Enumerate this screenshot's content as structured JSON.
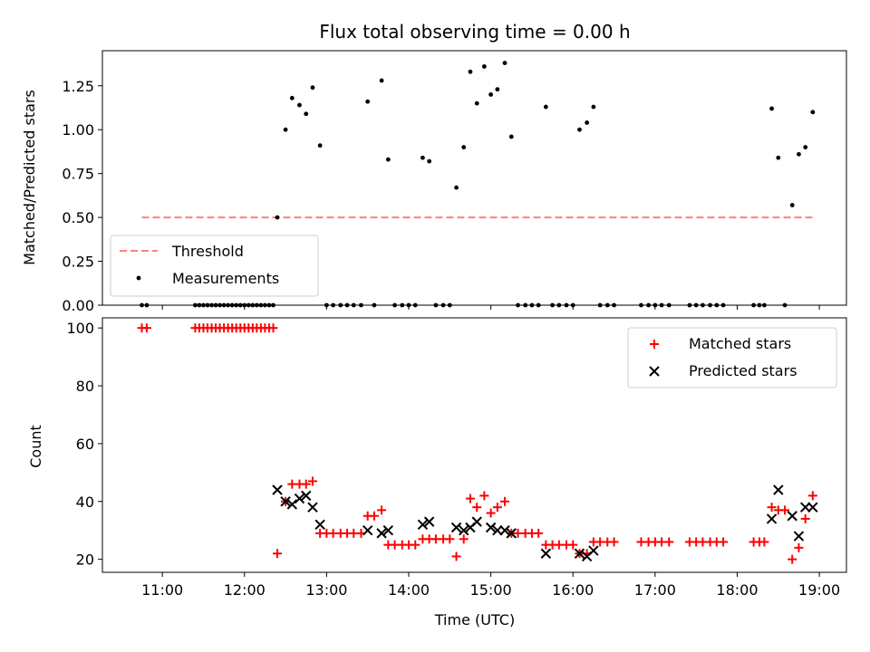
{
  "chart_data": [
    {
      "type": "scatter",
      "title": "Flux total observing time = 0.00 h",
      "xlabel": "",
      "ylabel": "Matched/Predicted stars",
      "xlim": [
        10.27,
        19.33
      ],
      "ylim": [
        0,
        1.45
      ],
      "yticks": [
        "0.00",
        "0.25",
        "0.50",
        "0.75",
        "1.00",
        "1.25"
      ],
      "threshold": {
        "name": "Threshold",
        "value": 0.5,
        "x": [
          10.75,
          18.93
        ],
        "color": "#ff7f7f"
      },
      "series": [
        {
          "name": "Measurements",
          "color": "#000000",
          "x": [
            10.75,
            10.81,
            11.4,
            11.45,
            11.5,
            11.55,
            11.6,
            11.65,
            11.7,
            11.75,
            11.8,
            11.85,
            11.9,
            11.95,
            12.0,
            12.05,
            12.1,
            12.15,
            12.2,
            12.25,
            12.3,
            12.35,
            12.4,
            12.5,
            12.58,
            12.67,
            12.75,
            12.83,
            12.92,
            13.0,
            13.08,
            13.17,
            13.25,
            13.33,
            13.42,
            13.5,
            13.58,
            13.67,
            13.75,
            13.83,
            13.92,
            14.0,
            14.08,
            14.17,
            14.25,
            14.33,
            14.42,
            14.5,
            14.58,
            14.67,
            14.75,
            14.83,
            14.92,
            15.0,
            15.08,
            15.17,
            15.25,
            15.33,
            15.42,
            15.5,
            15.58,
            15.67,
            15.75,
            15.83,
            15.92,
            16.0,
            16.08,
            16.17,
            16.25,
            16.33,
            16.42,
            16.5,
            16.83,
            16.92,
            17.0,
            17.08,
            17.17,
            17.42,
            17.5,
            17.58,
            17.67,
            17.75,
            17.83,
            18.2,
            18.27,
            18.33,
            18.42,
            18.5,
            18.58,
            18.67,
            18.75,
            18.83,
            18.92
          ],
          "y": [
            0,
            0,
            0,
            0,
            0,
            0,
            0,
            0,
            0,
            0,
            0,
            0,
            0,
            0,
            0,
            0,
            0,
            0,
            0,
            0,
            0,
            0,
            0.5,
            1.0,
            1.18,
            1.14,
            1.09,
            1.24,
            0.91,
            0,
            0,
            0,
            0,
            0,
            0,
            1.16,
            0,
            1.28,
            0.83,
            0,
            0,
            0,
            0,
            0.84,
            0.82,
            0,
            0,
            0,
            0.67,
            0.9,
            1.33,
            1.15,
            1.36,
            1.2,
            1.23,
            1.38,
            0.96,
            0,
            0,
            0,
            0,
            1.13,
            0,
            0,
            0,
            0,
            1.0,
            1.04,
            1.13,
            0,
            0,
            0,
            0,
            0,
            0,
            0,
            0,
            0,
            0,
            0,
            0,
            0,
            0,
            0,
            0,
            0,
            1.12,
            0.84,
            0,
            0.57,
            0.86,
            0.9,
            1.1
          ]
        }
      ],
      "legend": {
        "position": "lower-left",
        "entries": [
          "Threshold",
          "Measurements"
        ]
      }
    },
    {
      "type": "scatter",
      "title": "",
      "xlabel": "Time (UTC)",
      "ylabel": "Count",
      "xlim": [
        10.27,
        19.33
      ],
      "ylim": [
        15.5,
        103.5
      ],
      "yticks": [
        "20",
        "40",
        "60",
        "80",
        "100"
      ],
      "xticks": [
        "11:00",
        "12:00",
        "13:00",
        "14:00",
        "15:00",
        "16:00",
        "17:00",
        "18:00",
        "19:00"
      ],
      "series": [
        {
          "name": "Matched stars",
          "marker": "+",
          "color": "#ff0000",
          "x": [
            10.75,
            10.81,
            11.4,
            11.45,
            11.5,
            11.55,
            11.6,
            11.65,
            11.7,
            11.75,
            11.8,
            11.85,
            11.9,
            11.95,
            12.0,
            12.05,
            12.1,
            12.15,
            12.2,
            12.25,
            12.3,
            12.35,
            12.4,
            12.5,
            12.58,
            12.67,
            12.75,
            12.83,
            12.92,
            13.0,
            13.08,
            13.17,
            13.25,
            13.33,
            13.42,
            13.5,
            13.58,
            13.67,
            13.75,
            13.83,
            13.92,
            14.0,
            14.08,
            14.17,
            14.25,
            14.33,
            14.42,
            14.5,
            14.58,
            14.67,
            14.75,
            14.83,
            14.92,
            15.0,
            15.08,
            15.17,
            15.25,
            15.33,
            15.42,
            15.5,
            15.58,
            15.67,
            15.75,
            15.83,
            15.92,
            16.0,
            16.08,
            16.17,
            16.25,
            16.33,
            16.42,
            16.5,
            16.83,
            16.92,
            17.0,
            17.08,
            17.17,
            17.42,
            17.5,
            17.58,
            17.67,
            17.75,
            17.83,
            18.2,
            18.27,
            18.33,
            18.42,
            18.5,
            18.58,
            18.67,
            18.75,
            18.83,
            18.92
          ],
          "y": [
            100,
            100,
            100,
            100,
            100,
            100,
            100,
            100,
            100,
            100,
            100,
            100,
            100,
            100,
            100,
            100,
            100,
            100,
            100,
            100,
            100,
            100,
            22,
            40,
            46,
            46,
            46,
            47,
            29,
            29,
            29,
            29,
            29,
            29,
            29,
            35,
            35,
            37,
            25,
            25,
            25,
            25,
            25,
            27,
            27,
            27,
            27,
            27,
            21,
            27,
            41,
            38,
            42,
            36,
            38,
            40,
            29,
            29,
            29,
            29,
            29,
            25,
            25,
            25,
            25,
            25,
            22,
            22,
            26,
            26,
            26,
            26,
            26,
            26,
            26,
            26,
            26,
            26,
            26,
            26,
            26,
            26,
            26,
            26,
            26,
            26,
            38,
            37,
            37,
            20,
            24,
            34,
            42
          ]
        },
        {
          "name": "Predicted stars",
          "marker": "x",
          "color": "#000000",
          "x": [
            12.4,
            12.5,
            12.58,
            12.67,
            12.75,
            12.83,
            12.92,
            13.5,
            13.67,
            13.75,
            14.17,
            14.25,
            14.58,
            14.67,
            14.75,
            14.83,
            15.0,
            15.08,
            15.17,
            15.25,
            15.67,
            16.08,
            16.17,
            16.25,
            18.42,
            18.5,
            18.67,
            18.75,
            18.83,
            18.92
          ],
          "y": [
            44,
            40,
            39,
            41,
            42,
            38,
            32,
            30,
            29,
            30,
            32,
            33,
            31,
            30,
            31,
            33,
            31,
            30,
            30,
            29,
            22,
            22,
            21,
            23,
            34,
            44,
            35,
            28,
            38,
            38
          ]
        }
      ],
      "legend": {
        "position": "top-right",
        "entries": [
          "Matched stars",
          "Predicted stars"
        ]
      }
    }
  ]
}
